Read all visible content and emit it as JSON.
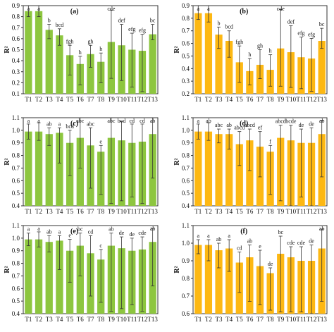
{
  "style": {
    "green": "#8DC63F",
    "orange": "#FDB813",
    "axis_color": "#333333"
  },
  "chart_data": [
    {
      "panel": "a",
      "label": "(a)",
      "type": "bar",
      "color": "green",
      "ylabel": "R²",
      "ylim": [
        0.1,
        0.9
      ],
      "yticks": [
        0.1,
        0.2,
        0.3,
        0.4,
        0.5,
        0.6,
        0.7,
        0.8,
        0.9
      ],
      "categories": [
        "T1",
        "T2",
        "T3",
        "T4",
        "T5",
        "T6",
        "T7",
        "T8",
        "T9",
        "T10",
        "T11",
        "T12",
        "T13"
      ],
      "values": [
        0.85,
        0.85,
        0.68,
        0.63,
        0.45,
        0.37,
        0.46,
        0.39,
        0.57,
        0.54,
        0.5,
        0.49,
        0.64
      ],
      "err_upper": [
        0.08,
        0.08,
        0.05,
        0.06,
        0.09,
        0.07,
        0.08,
        0.08,
        0.29,
        0.19,
        0.15,
        0.15,
        0.09
      ],
      "err_lower": [
        0.05,
        0.05,
        0.08,
        0.09,
        0.18,
        0.19,
        0.12,
        0.19,
        0.33,
        0.32,
        0.34,
        0.37,
        0.05
      ],
      "letters": [
        "a",
        "a",
        "b",
        "bcd",
        "fgh",
        "h",
        "gh",
        "h",
        "cde",
        "def",
        "efg",
        "efg",
        "bc"
      ]
    },
    {
      "panel": "b",
      "label": "(b)",
      "type": "bar",
      "color": "orange",
      "ylabel": "R²",
      "ylim": [
        0.2,
        0.9
      ],
      "yticks": [
        0.2,
        0.3,
        0.4,
        0.5,
        0.6,
        0.7,
        0.8,
        0.9
      ],
      "categories": [
        "T1",
        "T2",
        "T3",
        "T4",
        "T5",
        "T6",
        "T7",
        "T8",
        "T9",
        "T10",
        "T11",
        "T12",
        "T13"
      ],
      "values": [
        0.84,
        0.84,
        0.67,
        0.62,
        0.45,
        0.38,
        0.43,
        0.39,
        0.56,
        0.53,
        0.49,
        0.48,
        0.62
      ],
      "err_upper": [
        0.06,
        0.09,
        0.06,
        0.08,
        0.13,
        0.1,
        0.12,
        0.12,
        0.31,
        0.21,
        0.16,
        0.16,
        0.1
      ],
      "err_lower": [
        0.05,
        0.07,
        0.11,
        0.13,
        0.16,
        0.11,
        0.11,
        0.13,
        0.3,
        0.28,
        0.25,
        0.26,
        0.06
      ],
      "letters": [
        "a",
        "a",
        "b",
        "bcd",
        "fgh",
        "h",
        "gh",
        "h",
        "cde",
        "def",
        "efg",
        "efg",
        "bc"
      ]
    },
    {
      "panel": "c",
      "label": "(c)",
      "type": "bar",
      "color": "green",
      "ylabel": "R²",
      "ylim": [
        0.4,
        1.1
      ],
      "yticks": [
        0.4,
        0.5,
        0.6,
        0.7,
        0.8,
        0.9,
        1.0,
        1.1
      ],
      "categories": [
        "T1",
        "T2",
        "T3",
        "T4",
        "T5",
        "T6",
        "T7",
        "T8",
        "T9",
        "T10",
        "T11",
        "T12",
        "T13"
      ],
      "values": [
        0.99,
        0.99,
        0.97,
        0.98,
        0.9,
        0.94,
        0.88,
        0.83,
        0.94,
        0.92,
        0.9,
        0.91,
        0.97
      ],
      "err_upper": [
        0.06,
        0.07,
        0.05,
        0.04,
        0.1,
        0.17,
        0.14,
        0.05,
        0.17,
        0.15,
        0.15,
        0.14,
        0.14
      ],
      "err_lower": [
        0.06,
        0.07,
        0.09,
        0.24,
        0.26,
        0.24,
        0.34,
        0.34,
        0.52,
        0.48,
        0.43,
        0.49,
        0.35
      ],
      "letters": [
        "a",
        "a",
        "ab",
        "a",
        "bcd",
        "abc",
        "abc",
        "e",
        "abc",
        "bcd",
        "cd",
        "cd",
        "ab"
      ]
    },
    {
      "panel": "d",
      "label": "(d)",
      "type": "bar",
      "color": "orange",
      "ylabel": "R²",
      "ylim": [
        0.4,
        1.1
      ],
      "yticks": [
        0.4,
        0.5,
        0.6,
        0.7,
        0.8,
        0.9,
        1.0,
        1.1
      ],
      "categories": [
        "T1",
        "T2",
        "T3",
        "T4",
        "T5",
        "T6",
        "T7",
        "T8",
        "T9",
        "T10",
        "T11",
        "T12",
        "T13"
      ],
      "values": [
        0.99,
        0.99,
        0.97,
        0.97,
        0.89,
        0.92,
        0.87,
        0.83,
        0.94,
        0.92,
        0.9,
        0.9,
        0.97
      ],
      "err_upper": [
        0.06,
        0.07,
        0.04,
        0.04,
        0.1,
        0.09,
        0.12,
        0.05,
        0.1,
        0.12,
        0.11,
        0.12,
        0.11
      ],
      "err_lower": [
        0.06,
        0.07,
        0.07,
        0.12,
        0.17,
        0.24,
        0.24,
        0.34,
        0.5,
        0.52,
        0.43,
        0.5,
        0.34
      ],
      "letters": [
        "a",
        "ab",
        "abc",
        "ab",
        "abcd",
        "abcd",
        "ef",
        "f",
        "abcd",
        "bcde",
        "de",
        "de",
        "ab"
      ]
    },
    {
      "panel": "e",
      "label": "(e)",
      "type": "bar",
      "color": "green",
      "ylabel": "R²",
      "ylim": [
        0.4,
        1.1
      ],
      "yticks": [
        0.4,
        0.5,
        0.6,
        0.7,
        0.8,
        0.9,
        1.0,
        1.1
      ],
      "categories": [
        "T1",
        "T2",
        "T3",
        "T4",
        "T5",
        "T6",
        "T7",
        "T8",
        "T9",
        "T10",
        "T11",
        "T12",
        "T13"
      ],
      "values": [
        0.99,
        0.99,
        0.97,
        0.98,
        0.9,
        0.94,
        0.88,
        0.83,
        0.94,
        0.92,
        0.9,
        0.91,
        0.97
      ],
      "err_upper": [
        0.05,
        0.06,
        0.05,
        0.04,
        0.09,
        0.1,
        0.14,
        0.08,
        0.1,
        0.09,
        0.1,
        0.1,
        0.11
      ],
      "err_lower": [
        0.05,
        0.06,
        0.08,
        0.23,
        0.25,
        0.24,
        0.34,
        0.34,
        0.52,
        0.48,
        0.43,
        0.49,
        0.35
      ],
      "letters": [
        "a",
        "a",
        "ab",
        "a",
        "e",
        "bc",
        "cd",
        "c",
        "ab",
        "de",
        "de",
        "cde",
        "ab"
      ]
    },
    {
      "panel": "f",
      "label": "(f)",
      "type": "bar",
      "color": "orange",
      "ylabel": "R²",
      "ylim": [
        0.6,
        1.1
      ],
      "yticks": [
        0.6,
        0.7,
        0.8,
        0.9,
        1.0,
        1.1
      ],
      "categories": [
        "T1",
        "T2",
        "T3",
        "T4",
        "T5",
        "T6",
        "T7",
        "T8",
        "T9",
        "T10",
        "T11",
        "T12",
        "T13"
      ],
      "values": [
        0.99,
        0.99,
        0.96,
        0.97,
        0.89,
        0.92,
        0.87,
        0.83,
        0.94,
        0.92,
        0.9,
        0.9,
        0.97
      ],
      "err_upper": [
        0.03,
        0.03,
        0.04,
        0.05,
        0.06,
        0.07,
        0.09,
        0.03,
        0.1,
        0.06,
        0.08,
        0.09,
        0.11
      ],
      "err_lower": [
        0.05,
        0.09,
        0.1,
        0.13,
        0.17,
        0.25,
        0.22,
        0.21,
        0.33,
        0.31,
        0.29,
        0.3,
        0.3
      ],
      "letters": [
        "a",
        "a",
        "ab",
        "a",
        "cd",
        "ab",
        "e",
        "de",
        "bc",
        "cde",
        "cde",
        "de",
        "ab"
      ]
    }
  ]
}
